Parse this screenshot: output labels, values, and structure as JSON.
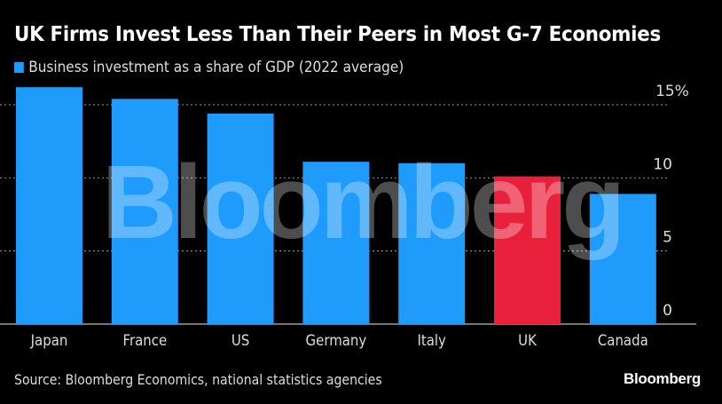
{
  "chart_data": {
    "type": "bar",
    "title": "UK Firms Invest Less Than Their Peers in Most G-7 Economies",
    "legend": [
      "Business investment as a share of GDP (2022 average)"
    ],
    "legend_placement": "top-left",
    "categories": [
      "Japan",
      "France",
      "US",
      "Germany",
      "Italy",
      "UK",
      "Canada"
    ],
    "values": [
      16.2,
      15.4,
      14.4,
      11.1,
      11.0,
      10.1,
      8.9
    ],
    "highlight": "UK",
    "colors": {
      "default": "#1e9bfb",
      "highlight": "#e8203c"
    },
    "xlabel": "",
    "ylabel": "",
    "ylim": [
      0,
      16.5
    ],
    "yticks": [
      0,
      5,
      10,
      15
    ],
    "ytick_labels": [
      "0",
      "5",
      "10",
      "15%"
    ],
    "yaxis_side": "right",
    "grid": true,
    "watermark": "Bloomberg",
    "source": "Source: Bloomberg Economics, national statistics agencies",
    "brand": "Bloomberg"
  }
}
